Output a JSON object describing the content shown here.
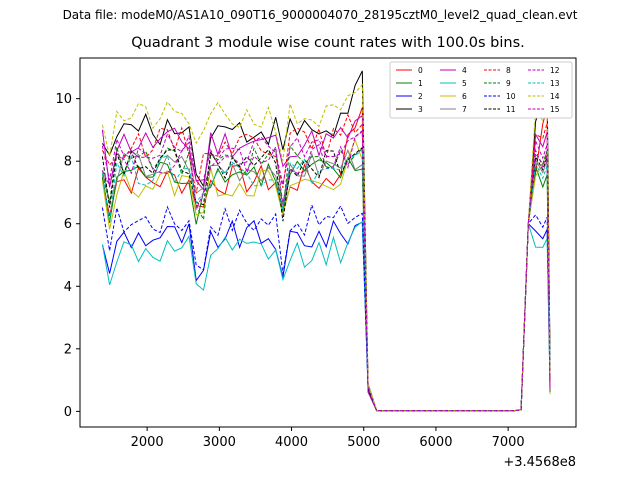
{
  "chart_data": {
    "type": "line",
    "suptitle": "Data file: modeM0/AS1A10_090T16_9000004070_28195cztM0_level2_quad_clean.evt",
    "title": "Quadrant 3 module wise count rates with 100.0s bins.",
    "xlabel": "",
    "ylabel": "",
    "x_offset_label": "+3.4568e8",
    "xlim": [
      1070,
      7940
    ],
    "ylim": [
      -0.5,
      11.3
    ],
    "x_ticks": [
      2000,
      3000,
      4000,
      5000,
      6000,
      7000
    ],
    "y_ticks": [
      0,
      2,
      4,
      6,
      8,
      10
    ],
    "x_tick_labels": [
      "2000",
      "3000",
      "4000",
      "5000",
      "6000",
      "7000"
    ],
    "y_tick_labels": [
      "0",
      "2",
      "4",
      "6",
      "8",
      "10"
    ],
    "grid": false,
    "legend_position": "top-right",
    "segments": [
      {
        "x_start": 1380,
        "x_end": 5080,
        "step": 100
      },
      {
        "x_start": 5080,
        "x_end": 7080,
        "step": 100
      },
      {
        "x_start": 7080,
        "x_end": 7580,
        "step": 100
      }
    ],
    "series": [
      {
        "name": "0",
        "color": "#ff0000",
        "dash": "solid",
        "base": 7.4,
        "end": 10.0
      },
      {
        "name": "1",
        "color": "#008000",
        "dash": "solid",
        "base": 7.6,
        "end": 7.8
      },
      {
        "name": "2",
        "color": "#0000ff",
        "dash": "solid",
        "base": 5.6,
        "end": 6.0
      },
      {
        "name": "3",
        "color": "#000000",
        "dash": "solid",
        "base": 9.0,
        "end": 10.8
      },
      {
        "name": "4",
        "color": "#bf00bf",
        "dash": "solid",
        "base": 8.6,
        "end": 9.2
      },
      {
        "name": "5",
        "color": "#00bfbf",
        "dash": "solid",
        "base": 5.1,
        "end": 5.7
      },
      {
        "name": "6",
        "color": "#bfbf00",
        "dash": "solid",
        "base": 7.3,
        "end": 8.6
      },
      {
        "name": "7",
        "color": "#808080",
        "dash": "solid",
        "base": 7.8,
        "end": 8.3
      },
      {
        "name": "8",
        "color": "#ff0000",
        "dash": "dashed",
        "base": 8.6,
        "end": 9.5
      },
      {
        "name": "9",
        "color": "#008000",
        "dash": "dashed",
        "base": 8.0,
        "end": 8.6
      },
      {
        "name": "10",
        "color": "#0000ff",
        "dash": "dashed",
        "base": 6.1,
        "end": 6.4
      },
      {
        "name": "11",
        "color": "#000000",
        "dash": "dashed",
        "base": 7.9,
        "end": 8.4
      },
      {
        "name": "12",
        "color": "#bf00bf",
        "dash": "dashed",
        "base": 8.4,
        "end": 8.8
      },
      {
        "name": "13",
        "color": "#00bfbf",
        "dash": "dashed",
        "base": 7.7,
        "end": 8.1
      },
      {
        "name": "14",
        "color": "#bfbf00",
        "dash": "dashed",
        "base": 9.4,
        "end": 10.1
      },
      {
        "name": "15",
        "color": "#bf00bf",
        "dash": "dashed",
        "base": 8.1,
        "end": 8.5
      }
    ]
  }
}
